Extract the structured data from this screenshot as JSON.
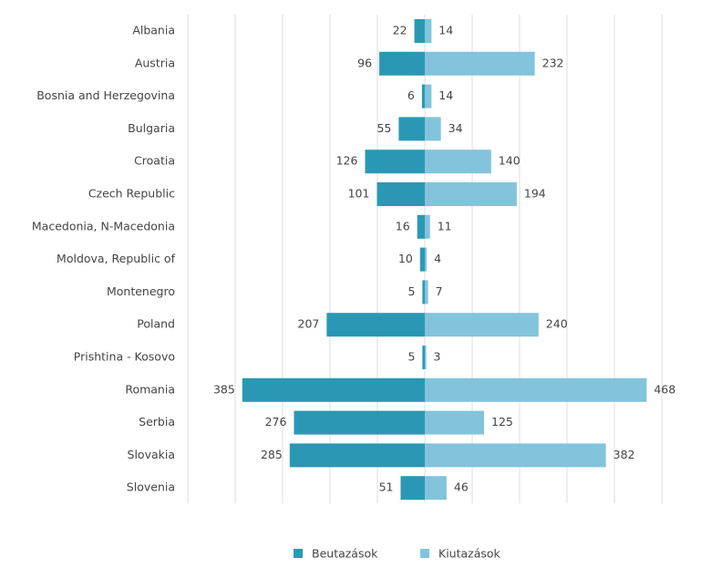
{
  "chart_data": {
    "type": "diverging-bar",
    "categories": [
      "Albania",
      "Austria",
      "Bosnia and Herzegovina",
      "Bulgaria",
      "Croatia",
      "Czech Republic",
      "Macedonia, N-Macedonia",
      "Moldova, Republic of",
      "Montenegro",
      "Poland",
      "Prishtina - Kosovo",
      "Romania",
      "Serbia",
      "Slovakia",
      "Slovenia"
    ],
    "series": [
      {
        "name": "Beutazások",
        "color": "#2a98b4",
        "side": "left",
        "values": [
          22,
          96,
          6,
          55,
          126,
          101,
          16,
          10,
          5,
          207,
          5,
          385,
          276,
          285,
          51
        ]
      },
      {
        "name": "Kiutazások",
        "color": "#82c4dc",
        "side": "right",
        "values": [
          14,
          232,
          14,
          34,
          140,
          194,
          11,
          4,
          7,
          240,
          3,
          468,
          125,
          382,
          46
        ]
      }
    ],
    "xlim": [
      -500,
      500
    ],
    "xticks": [
      -500,
      -400,
      -300,
      -200,
      -100,
      0,
      100,
      200,
      300,
      400,
      500
    ],
    "grid": true,
    "legend": "bottom"
  }
}
